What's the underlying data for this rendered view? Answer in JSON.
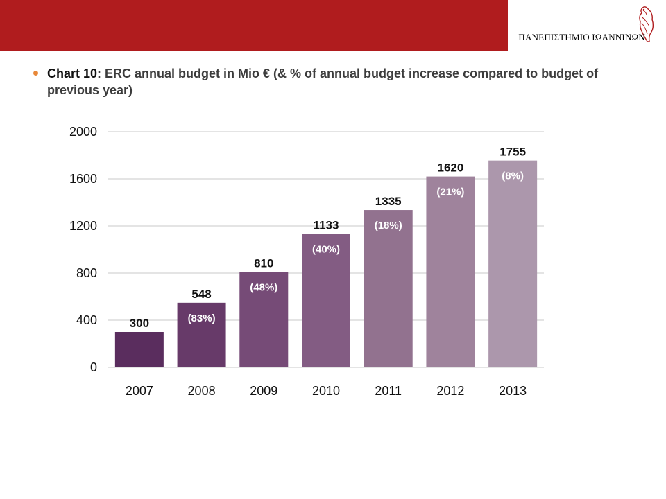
{
  "header": {
    "university": "ΠΑΝΕΠΙΣΤΗΜΙΟ ΙΩΑΝΝΙΝΩΝ",
    "logo_icon": "owl-icon",
    "band_color": "#b01c1e"
  },
  "title": {
    "lead": "Chart 10",
    "rest": ": ERC annual budget in Mio € (& % of annual budget increase compared to budget of previous year)",
    "bullet_color": "#e8883a"
  },
  "chart_data": {
    "type": "bar",
    "categories": [
      "2007",
      "2008",
      "2009",
      "2010",
      "2011",
      "2012",
      "2013"
    ],
    "values": [
      300,
      548,
      810,
      1133,
      1335,
      1620,
      1755
    ],
    "value_labels": [
      "300",
      "548",
      "810",
      "1133",
      "1335",
      "1620",
      "1755"
    ],
    "annotations": [
      "",
      "(83%)",
      "(48%)",
      "(40%)",
      "(18%)",
      "(21%)",
      "(8%)"
    ],
    "colors": [
      "#5a2d5e",
      "#673a69",
      "#764b77",
      "#835c83",
      "#92728f",
      "#9f839c",
      "#ac97ac"
    ],
    "ylim": [
      0,
      2000
    ],
    "yticks": [
      "0",
      "400",
      "800",
      "1200",
      "1600",
      "2000"
    ],
    "grid": true,
    "xlabel": "",
    "ylabel": ""
  }
}
